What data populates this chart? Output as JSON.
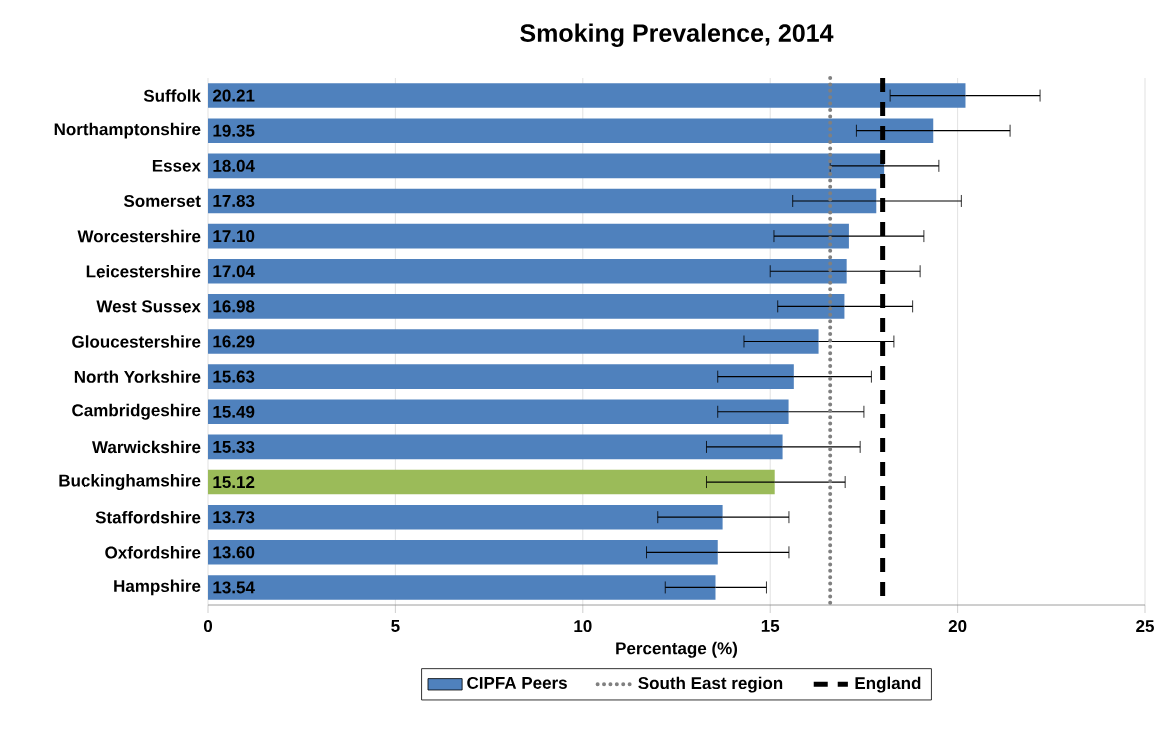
{
  "chart_data": {
    "type": "bar",
    "orientation": "horizontal",
    "title": "Smoking Prevalence, 2014",
    "xlabel": "Percentage (%)",
    "categories": [
      "Suffolk",
      "Northamptonshire",
      "Essex",
      "Somerset",
      "Worcestershire",
      "Leicestershire",
      "West Sussex",
      "Gloucestershire",
      "North Yorkshire",
      "Cambridgeshire",
      "Warwickshire",
      "Buckinghamshire",
      "Staffordshire",
      "Oxfordshire",
      "Hampshire"
    ],
    "series": [
      {
        "name": "CIPFA Peers",
        "color": "#4f81bd",
        "values": [
          20.21,
          19.35,
          18.04,
          17.83,
          17.1,
          17.04,
          16.98,
          16.29,
          15.63,
          15.49,
          15.33,
          15.12,
          13.73,
          13.6,
          13.54
        ],
        "value_labels": [
          "20.21",
          "19.35",
          "18.04",
          "17.83",
          "17.10",
          "17.04",
          "16.98",
          "16.29",
          "15.63",
          "15.49",
          "15.33",
          "15.12",
          "13.73",
          "13.60",
          "13.54"
        ],
        "colors": [
          "#4f81bd",
          "#4f81bd",
          "#4f81bd",
          "#4f81bd",
          "#4f81bd",
          "#4f81bd",
          "#4f81bd",
          "#4f81bd",
          "#4f81bd",
          "#4f81bd",
          "#4f81bd",
          "#9bbb59",
          "#4f81bd",
          "#4f81bd",
          "#4f81bd"
        ],
        "errors": [
          [
            18.2,
            22.2
          ],
          [
            17.3,
            21.4
          ],
          [
            16.6,
            19.5
          ],
          [
            15.6,
            20.1
          ],
          [
            15.1,
            19.1
          ],
          [
            15.0,
            19.0
          ],
          [
            15.2,
            18.8
          ],
          [
            14.3,
            18.3
          ],
          [
            13.6,
            17.7
          ],
          [
            13.6,
            17.5
          ],
          [
            13.3,
            17.4
          ],
          [
            13.3,
            17.0
          ],
          [
            12.0,
            15.5
          ],
          [
            11.7,
            15.5
          ],
          [
            12.2,
            14.9
          ]
        ]
      }
    ],
    "ref_lines": [
      {
        "axis": "x",
        "value": 16.6,
        "label": "South East region",
        "color": "#808080",
        "line_style": "dotted"
      },
      {
        "axis": "x",
        "value": 18.0,
        "label": "England",
        "color": "#000000",
        "line_style": "dashed"
      }
    ],
    "xlim": [
      0,
      25
    ],
    "xticks": [
      0,
      5,
      10,
      15,
      20,
      25
    ],
    "grid": "x",
    "legend": "bottom"
  }
}
